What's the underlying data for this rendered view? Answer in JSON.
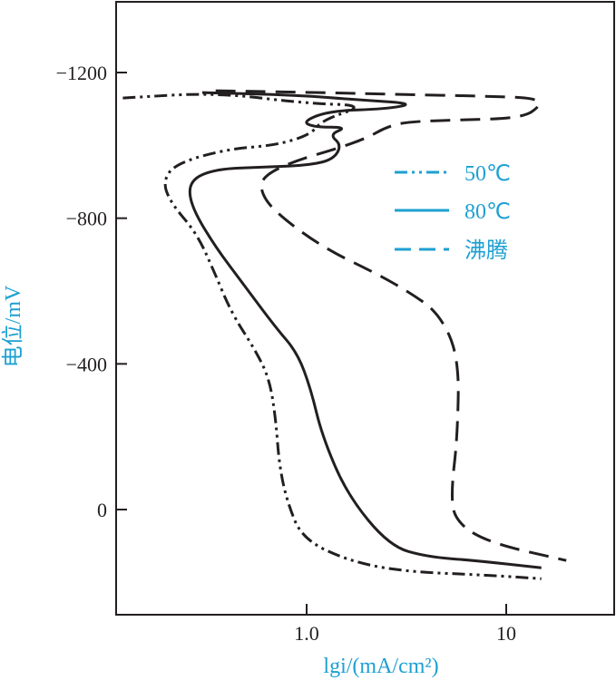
{
  "chart_data": {
    "type": "line",
    "title": "",
    "xlabel": "lgi/(mA/cm²)",
    "ylabel": "电位/mV",
    "x_scale": "log",
    "x_ticks": [
      {
        "value": 1.0,
        "label": "1.0"
      },
      {
        "value": 10,
        "label": "10"
      }
    ],
    "y_ticks": [
      {
        "value": -1200,
        "label": "−1200"
      },
      {
        "value": -800,
        "label": "−800"
      },
      {
        "value": -400,
        "label": "−400"
      },
      {
        "value": 0,
        "label": "0"
      }
    ],
    "xlim": [
      0.1,
      30
    ],
    "ylim": [
      200,
      -1400
    ],
    "y_direction": "reversed",
    "grid": false,
    "legend_position": "upper-right",
    "series": [
      {
        "name": "50℃",
        "dash": "dash-dot-dot",
        "points": [
          [
            0.12,
            -1130
          ],
          [
            0.35,
            -1145
          ],
          [
            1.0,
            -1115
          ],
          [
            2.0,
            -1110
          ],
          [
            1.2,
            -1070
          ],
          [
            1.05,
            -1030
          ],
          [
            0.7,
            -1000
          ],
          [
            0.4,
            -990
          ],
          [
            0.22,
            -950
          ],
          [
            0.19,
            -900
          ],
          [
            0.21,
            -840
          ],
          [
            0.28,
            -760
          ],
          [
            0.34,
            -660
          ],
          [
            0.42,
            -540
          ],
          [
            0.55,
            -440
          ],
          [
            0.65,
            -360
          ],
          [
            0.7,
            -250
          ],
          [
            0.73,
            -120
          ],
          [
            0.8,
            -20
          ],
          [
            0.95,
            80
          ],
          [
            1.6,
            140
          ],
          [
            3.0,
            170
          ],
          [
            8.0,
            180
          ],
          [
            15.0,
            190
          ]
        ]
      },
      {
        "name": "80℃",
        "dash": "solid",
        "points": [
          [
            0.3,
            -1145
          ],
          [
            0.9,
            -1138
          ],
          [
            1.8,
            -1125
          ],
          [
            3.5,
            -1115
          ],
          [
            2.5,
            -1100
          ],
          [
            1.3,
            -1095
          ],
          [
            0.95,
            -1065
          ],
          [
            1.1,
            -1050
          ],
          [
            1.6,
            -1050
          ],
          [
            1.3,
            -1030
          ],
          [
            1.5,
            -1000
          ],
          [
            1.35,
            -960
          ],
          [
            1.0,
            -945
          ],
          [
            0.6,
            -940
          ],
          [
            0.35,
            -935
          ],
          [
            0.26,
            -905
          ],
          [
            0.26,
            -840
          ],
          [
            0.34,
            -730
          ],
          [
            0.48,
            -620
          ],
          [
            0.7,
            -500
          ],
          [
            0.9,
            -430
          ],
          [
            1.05,
            -330
          ],
          [
            1.2,
            -200
          ],
          [
            1.6,
            -40
          ],
          [
            2.6,
            100
          ],
          [
            4.0,
            130
          ],
          [
            7.0,
            140
          ],
          [
            15.0,
            160
          ]
        ]
      },
      {
        "name": "沸腾",
        "dash": "dashed",
        "points": [
          [
            0.35,
            -1150
          ],
          [
            1.2,
            -1145
          ],
          [
            2.8,
            -1140
          ],
          [
            8.0,
            -1135
          ],
          [
            14.0,
            -1130
          ],
          [
            15.0,
            -1110
          ],
          [
            12.0,
            -1075
          ],
          [
            6.0,
            -1070
          ],
          [
            3.2,
            -1065
          ],
          [
            2.5,
            -1050
          ],
          [
            2.0,
            -1020
          ],
          [
            1.4,
            -990
          ],
          [
            0.9,
            -960
          ],
          [
            0.62,
            -920
          ],
          [
            0.58,
            -880
          ],
          [
            0.68,
            -820
          ],
          [
            1.2,
            -720
          ],
          [
            2.2,
            -650
          ],
          [
            3.2,
            -600
          ],
          [
            4.6,
            -540
          ],
          [
            5.8,
            -420
          ],
          [
            5.7,
            -200
          ],
          [
            5.3,
            -50
          ],
          [
            5.5,
            30
          ],
          [
            8.0,
            90
          ],
          [
            20.0,
            140
          ]
        ]
      }
    ]
  }
}
